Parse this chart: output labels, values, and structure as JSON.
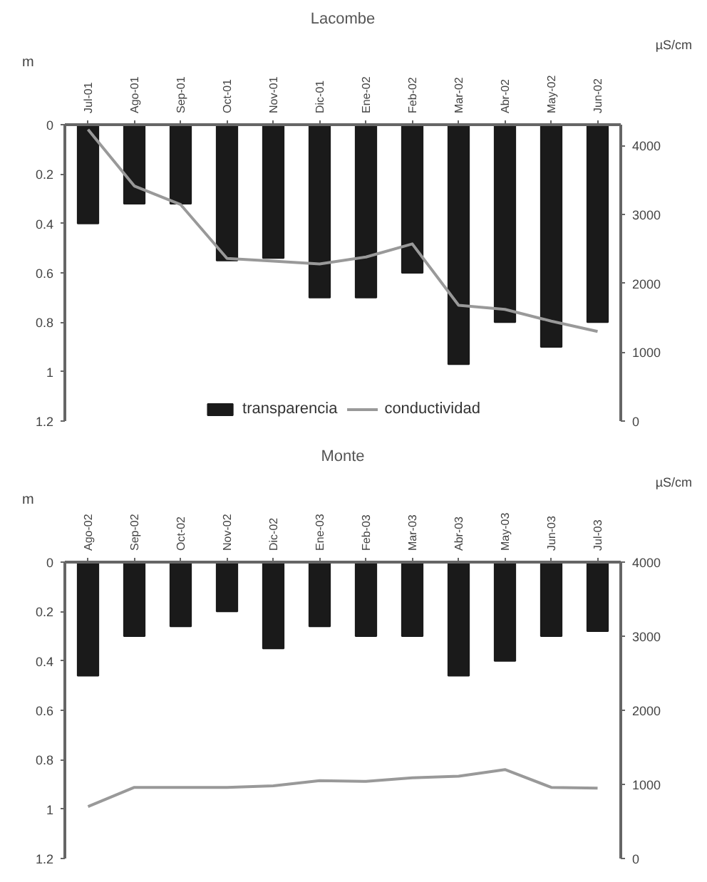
{
  "chart_data": [
    {
      "type": "bar",
      "title": "Lacombe",
      "ylabel": "m",
      "y2label": "µS/cm",
      "categories": [
        "Jul-01",
        "Ago-01",
        "Sep-01",
        "Oct-01",
        "Nov-01",
        "Dic-01",
        "Ene-02",
        "Feb-02",
        "Mar-02",
        "Abr-02",
        "May-02",
        "Jun-02"
      ],
      "series": [
        {
          "name": "transparencia",
          "color": "#1a1a1a",
          "values": [
            0.4,
            0.32,
            0.32,
            0.55,
            0.54,
            0.7,
            0.7,
            0.6,
            0.97,
            0.8,
            0.9,
            0.8
          ]
        },
        {
          "name": "conductividad",
          "type": "line",
          "axis": "y2",
          "color": "#999999",
          "values": [
            4230,
            3410,
            3140,
            2360,
            2320,
            2280,
            2380,
            2570,
            1680,
            1620,
            1450,
            1300
          ]
        }
      ],
      "ylim": [
        1.2,
        0
      ],
      "yticks": [
        0,
        0.2,
        0.4,
        0.6,
        0.8,
        1,
        1.2
      ],
      "y2lim": [
        0,
        4300
      ],
      "y2ticks": [
        0,
        1000,
        2000,
        3000,
        4000
      ],
      "legend": "bottom",
      "grid": false
    },
    {
      "type": "bar",
      "title": "Monte",
      "ylabel": "m",
      "y2label": "µS/cm",
      "categories": [
        "Ago-02",
        "Sep-02",
        "Oct-02",
        "Nov-02",
        "Dic-02",
        "Ene-03",
        "Feb-03",
        "Mar-03",
        "Abr-03",
        "May-03",
        "Jun-03",
        "Jul-03"
      ],
      "series": [
        {
          "color": "#1a1a1a",
          "values": [
            0.46,
            0.3,
            0.26,
            0.2,
            0.35,
            0.26,
            0.3,
            0.3,
            0.46,
            0.4,
            0.3,
            0.28
          ]
        },
        {
          "type": "line",
          "axis": "y2",
          "color": "#999999",
          "values": [
            700,
            960,
            960,
            960,
            980,
            1050,
            1040,
            1090,
            1110,
            1200,
            960,
            950
          ]
        }
      ],
      "ylim": [
        1.2,
        0
      ],
      "yticks": [
        0,
        0.2,
        0.4,
        0.6,
        0.8,
        1,
        1.2
      ],
      "y2lim": [
        0,
        4000
      ],
      "y2ticks": [
        0,
        1000,
        2000,
        3000,
        4000
      ],
      "legend": false,
      "grid": false
    }
  ]
}
